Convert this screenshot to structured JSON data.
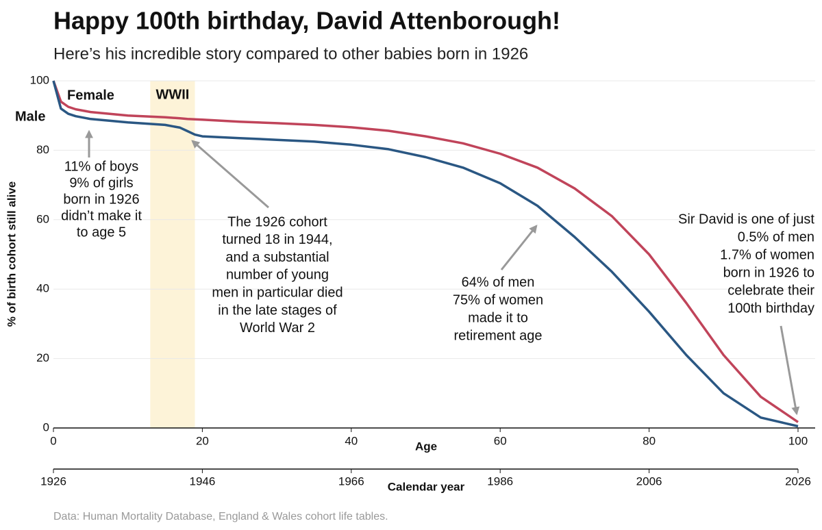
{
  "chart_data": {
    "type": "line",
    "title": "Happy 100th birthday, David Attenborough!",
    "subtitle": "Here’s his incredible story compared to other babies born in 1926",
    "x_label": "Age",
    "x2_label": "Calendar year",
    "y_label": "% of birth cohort still alive",
    "source": "Data: Human Mortality Database, England & Wales cohort life tables.",
    "x": [
      0,
      1,
      2,
      3,
      5,
      10,
      15,
      17,
      18,
      19,
      20,
      25,
      30,
      35,
      40,
      45,
      50,
      55,
      60,
      65,
      70,
      75,
      80,
      85,
      90,
      95,
      100
    ],
    "series": [
      {
        "name": "Female",
        "color": "#c0445a",
        "values": [
          100,
          94,
          92.5,
          91.8,
          91,
          90,
          89.5,
          89.2,
          89,
          88.9,
          88.8,
          88.2,
          87.8,
          87.3,
          86.6,
          85.6,
          84,
          82,
          79,
          75,
          69,
          61,
          50,
          36,
          21,
          9,
          1.7
        ]
      },
      {
        "name": "Male",
        "color": "#2a5783",
        "values": [
          100,
          92,
          90.5,
          89.8,
          89,
          88,
          87.3,
          86.5,
          85.5,
          84.5,
          84,
          83.5,
          83,
          82.5,
          81.6,
          80.3,
          78,
          75,
          70.5,
          64,
          55,
          45,
          33.5,
          21,
          10,
          3,
          0.5
        ]
      }
    ],
    "xlim": [
      0,
      100
    ],
    "xticks": [
      0,
      20,
      40,
      60,
      80,
      100
    ],
    "x2lim": [
      1926,
      2026
    ],
    "x2ticks": [
      1926,
      1946,
      1966,
      1986,
      2006,
      2026
    ],
    "ylim": [
      0,
      100
    ],
    "yticks": [
      0,
      20,
      40,
      60,
      80,
      100
    ],
    "grid": true,
    "shaded_region": {
      "label": "WWII",
      "x": [
        13,
        19
      ],
      "color": "#fdf3d8",
      "label_color": "#d4920a"
    },
    "annotations": [
      {
        "lines": [
          {
            "text": "11% of boys",
            "color": "#2a5783"
          },
          {
            "text": "9% of girls",
            "color": "#c0445a"
          },
          {
            "text": "born in 1926",
            "color": "#8c8c8c"
          },
          {
            "text": "didn’t make it",
            "color": "#8c8c8c"
          },
          {
            "text": "to age 5",
            "color": "#8c8c8c"
          }
        ]
      },
      {
        "lines": [
          {
            "text": "The 1926 cohort",
            "color": "#8c8c8c"
          },
          {
            "text": "turned 18 in 1944,",
            "color": "#8c8c8c"
          },
          {
            "text": "and a substantial",
            "color": "#8c8c8c"
          },
          {
            "text": "number of young",
            "color": "#8c8c8c"
          },
          {
            "text": "men in particular died",
            "color": "#8c8c8c"
          },
          {
            "text": "in the late stages of",
            "color": "#8c8c8c"
          },
          {
            "text": "World War 2",
            "color": "#8c8c8c"
          }
        ]
      },
      {
        "lines": [
          {
            "text": "64% of men",
            "color": "#2a5783"
          },
          {
            "text": "75% of women",
            "color": "#c0445a"
          },
          {
            "text": "made it to",
            "color": "#8c8c8c"
          },
          {
            "text": "retirement age",
            "color": "#8c8c8c"
          }
        ]
      },
      {
        "lines": [
          {
            "text": "Sir David is one of just",
            "color": "#8c8c8c"
          },
          {
            "text": "0.5% of men",
            "color": "#2a5783"
          },
          {
            "text": "1.7% of women",
            "color": "#c0445a"
          },
          {
            "text": "born in 1926 to",
            "color": "#8c8c8c"
          },
          {
            "text": "celebrate their",
            "color": "#8c8c8c"
          },
          {
            "text": "100th birthday",
            "color": "#8c8c8c"
          }
        ]
      }
    ]
  }
}
